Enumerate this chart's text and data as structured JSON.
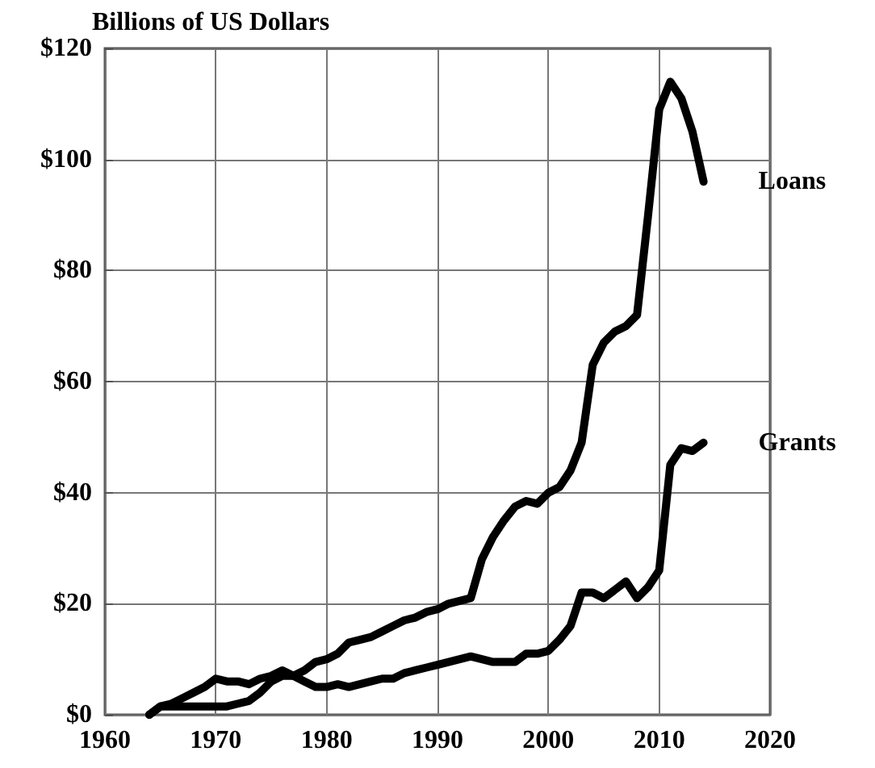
{
  "chart_data": {
    "type": "line",
    "ylabel": "Billions of US Dollars",
    "x": [
      1964,
      1965,
      1966,
      1967,
      1968,
      1969,
      1970,
      1971,
      1972,
      1973,
      1974,
      1975,
      1976,
      1977,
      1978,
      1979,
      1980,
      1981,
      1982,
      1983,
      1984,
      1985,
      1986,
      1987,
      1988,
      1989,
      1990,
      1991,
      1992,
      1993,
      1994,
      1995,
      1996,
      1997,
      1998,
      1999,
      2000,
      2001,
      2002,
      2003,
      2004,
      2005,
      2006,
      2007,
      2008,
      2009,
      2010,
      2011,
      2012,
      2013,
      2014
    ],
    "series": [
      {
        "name": "Loans",
        "color": "#000000",
        "values": [
          0,
          1.5,
          1.5,
          1.5,
          1.5,
          1.5,
          1.5,
          1.5,
          2,
          2.5,
          4,
          6,
          7,
          7,
          8,
          9.5,
          10,
          11,
          13,
          13.5,
          14,
          15,
          16,
          17,
          17.5,
          18.5,
          19,
          20,
          20.5,
          21,
          28,
          32,
          35,
          37.5,
          38.5,
          38,
          40,
          41,
          44,
          49,
          63,
          67,
          69,
          70,
          72,
          90,
          109,
          114,
          111,
          105,
          96
        ]
      },
      {
        "name": "Grants",
        "color": "#000000",
        "values": [
          0,
          1.5,
          2,
          3,
          4,
          5,
          6.5,
          6,
          6,
          5.5,
          6.5,
          7,
          8,
          7,
          6,
          5,
          5,
          5.5,
          5,
          5.5,
          6,
          6.5,
          6.5,
          7.5,
          8,
          8.5,
          9,
          9.5,
          10,
          10.5,
          10,
          9.5,
          9.5,
          9.5,
          11,
          11,
          11.5,
          13.5,
          16,
          22,
          22,
          21,
          22.5,
          24,
          21,
          23,
          26,
          45,
          48,
          47.5,
          49
        ]
      }
    ],
    "xlim": [
      1960,
      2020
    ],
    "xticks": [
      1960,
      1970,
      1980,
      1990,
      2000,
      2010,
      2020
    ],
    "ylim": [
      0,
      120
    ],
    "yticks": [
      {
        "value": 0,
        "label": "$0"
      },
      {
        "value": 20,
        "label": "$20"
      },
      {
        "value": 40,
        "label": "$40"
      },
      {
        "value": 60,
        "label": "$60"
      },
      {
        "value": 80,
        "label": "$80"
      },
      {
        "value": 100,
        "label": "$100"
      },
      {
        "value": 120,
        "label": "$120"
      }
    ],
    "grid": true,
    "legend": false,
    "marker": "none",
    "line_style": "solid"
  }
}
